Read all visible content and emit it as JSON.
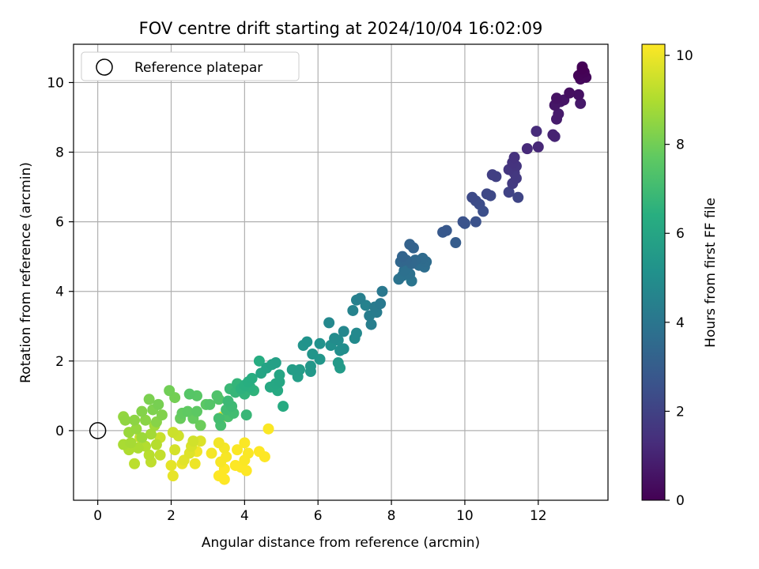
{
  "chart_data": {
    "type": "scatter",
    "title": "FOV centre drift starting at 2024/10/04 16:02:09",
    "xlabel": "Angular distance from reference (arcmin)",
    "ylabel": "Rotation from reference (arcmin)",
    "xlim": [
      -0.66,
      13.9
    ],
    "ylim": [
      -2.0,
      11.1
    ],
    "xticks": [
      0,
      2,
      4,
      6,
      8,
      10,
      12
    ],
    "yticks": [
      0,
      2,
      4,
      6,
      8,
      10
    ],
    "grid": true,
    "legend": {
      "position": "top-left",
      "entries": [
        "Reference platepar"
      ]
    },
    "reference_point": {
      "name": "Reference platepar",
      "x": 0,
      "y": 0
    },
    "colorbar": {
      "label": "Hours from first FF file",
      "colormap": "viridis",
      "range": [
        0,
        10.25
      ],
      "ticks": [
        0,
        2,
        4,
        6,
        8,
        10
      ]
    },
    "points": [
      [
        13.2,
        10.4,
        0.0
      ],
      [
        13.25,
        10.3,
        0.05
      ],
      [
        13.1,
        10.2,
        0.1
      ],
      [
        13.3,
        10.15,
        0.15
      ],
      [
        13.2,
        10.45,
        0.2
      ],
      [
        13.15,
        10.1,
        0.25
      ],
      [
        12.85,
        9.7,
        0.4
      ],
      [
        13.1,
        9.65,
        0.45
      ],
      [
        12.5,
        9.55,
        0.5
      ],
      [
        12.7,
        9.5,
        0.55
      ],
      [
        12.45,
        9.35,
        0.6
      ],
      [
        12.6,
        9.45,
        0.65
      ],
      [
        13.15,
        9.4,
        0.7
      ],
      [
        12.55,
        9.1,
        0.75
      ],
      [
        12.5,
        8.95,
        0.8
      ],
      [
        12.4,
        8.5,
        1.0
      ],
      [
        12.45,
        8.45,
        1.05
      ],
      [
        12.0,
        8.15,
        1.15
      ],
      [
        11.7,
        8.1,
        1.2
      ],
      [
        11.95,
        8.6,
        1.25
      ],
      [
        11.35,
        7.85,
        1.45
      ],
      [
        11.3,
        7.7,
        1.5
      ],
      [
        11.4,
        7.6,
        1.55
      ],
      [
        11.2,
        7.5,
        1.6
      ],
      [
        11.35,
        7.4,
        1.65
      ],
      [
        11.4,
        7.25,
        1.7
      ],
      [
        11.3,
        7.1,
        1.75
      ],
      [
        10.75,
        7.35,
        1.9
      ],
      [
        10.85,
        7.3,
        1.95
      ],
      [
        11.2,
        6.85,
        2.05
      ],
      [
        11.45,
        6.7,
        2.1
      ],
      [
        10.6,
        6.8,
        2.2
      ],
      [
        10.7,
        6.75,
        2.25
      ],
      [
        10.2,
        6.7,
        2.3
      ],
      [
        10.3,
        6.6,
        2.35
      ],
      [
        10.4,
        6.5,
        2.4
      ],
      [
        10.5,
        6.3,
        2.45
      ],
      [
        10.3,
        6.0,
        2.55
      ],
      [
        9.95,
        6.0,
        2.6
      ],
      [
        10.0,
        5.95,
        2.65
      ],
      [
        9.5,
        5.75,
        2.8
      ],
      [
        9.4,
        5.7,
        2.85
      ],
      [
        9.75,
        5.4,
        2.95
      ],
      [
        8.5,
        5.35,
        3.2
      ],
      [
        8.6,
        5.25,
        3.25
      ],
      [
        8.3,
        5.0,
        3.3
      ],
      [
        8.4,
        4.9,
        3.35
      ],
      [
        8.25,
        4.85,
        3.4
      ],
      [
        8.55,
        4.8,
        3.45
      ],
      [
        8.65,
        4.9,
        3.5
      ],
      [
        8.85,
        4.95,
        3.55
      ],
      [
        8.95,
        4.85,
        3.6
      ],
      [
        8.75,
        4.75,
        3.65
      ],
      [
        8.9,
        4.7,
        3.7
      ],
      [
        8.35,
        4.6,
        3.75
      ],
      [
        8.5,
        4.5,
        3.8
      ],
      [
        8.3,
        4.45,
        3.85
      ],
      [
        8.2,
        4.35,
        3.9
      ],
      [
        8.55,
        4.3,
        3.95
      ],
      [
        7.75,
        4.0,
        4.1
      ],
      [
        7.7,
        3.65,
        4.15
      ],
      [
        7.55,
        3.55,
        4.2
      ],
      [
        7.6,
        3.4,
        4.25
      ],
      [
        7.4,
        3.3,
        4.3
      ],
      [
        7.45,
        3.05,
        4.35
      ],
      [
        7.15,
        3.8,
        4.4
      ],
      [
        7.05,
        3.75,
        4.45
      ],
      [
        7.3,
        3.6,
        4.5
      ],
      [
        6.95,
        3.45,
        4.55
      ],
      [
        6.7,
        2.85,
        4.7
      ],
      [
        6.3,
        3.1,
        4.75
      ],
      [
        7.05,
        2.8,
        4.8
      ],
      [
        7.0,
        2.65,
        4.85
      ],
      [
        6.45,
        2.65,
        4.9
      ],
      [
        6.55,
        2.6,
        4.95
      ],
      [
        6.7,
        2.35,
        5.0
      ],
      [
        6.6,
        2.3,
        5.05
      ],
      [
        6.35,
        2.45,
        5.1
      ],
      [
        6.05,
        2.5,
        5.15
      ],
      [
        5.7,
        2.55,
        5.2
      ],
      [
        5.6,
        2.45,
        5.25
      ],
      [
        5.85,
        2.2,
        5.3
      ],
      [
        6.05,
        2.05,
        5.35
      ],
      [
        5.8,
        1.85,
        5.4
      ],
      [
        5.8,
        1.7,
        5.45
      ],
      [
        6.55,
        1.95,
        5.5
      ],
      [
        6.6,
        1.8,
        5.55
      ],
      [
        5.5,
        1.75,
        5.6
      ],
      [
        5.3,
        1.75,
        5.65
      ],
      [
        5.45,
        1.55,
        5.7
      ],
      [
        4.85,
        1.95,
        5.8
      ],
      [
        4.75,
        1.9,
        5.85
      ],
      [
        4.6,
        1.8,
        5.9
      ],
      [
        4.45,
        1.65,
        5.95
      ],
      [
        4.95,
        1.6,
        6.0
      ],
      [
        4.95,
        1.4,
        6.05
      ],
      [
        4.85,
        1.35,
        6.1
      ],
      [
        4.7,
        1.25,
        6.15
      ],
      [
        4.9,
        1.15,
        6.2
      ],
      [
        5.05,
        0.7,
        6.25
      ],
      [
        4.4,
        2.0,
        6.3
      ],
      [
        4.2,
        1.5,
        6.35
      ],
      [
        4.1,
        1.4,
        6.4
      ],
      [
        4.0,
        1.3,
        6.45
      ],
      [
        4.15,
        1.25,
        6.5
      ],
      [
        3.9,
        1.2,
        6.55
      ],
      [
        4.25,
        1.15,
        6.6
      ],
      [
        4.0,
        1.05,
        6.65
      ],
      [
        3.8,
        1.35,
        6.7
      ],
      [
        3.75,
        1.1,
        6.75
      ],
      [
        4.05,
        0.45,
        6.8
      ],
      [
        3.6,
        1.2,
        6.85
      ],
      [
        3.55,
        0.85,
        6.9
      ],
      [
        3.65,
        0.7,
        6.95
      ],
      [
        3.5,
        0.6,
        7.0
      ],
      [
        3.7,
        0.5,
        7.05
      ],
      [
        3.3,
        0.35,
        7.1
      ],
      [
        3.35,
        0.15,
        7.15
      ],
      [
        3.55,
        0.4,
        7.2
      ],
      [
        3.25,
        1.0,
        7.35
      ],
      [
        3.3,
        0.9,
        7.4
      ],
      [
        3.05,
        0.75,
        7.45
      ],
      [
        2.5,
        1.05,
        7.5
      ],
      [
        2.7,
        1.0,
        7.55
      ],
      [
        2.95,
        0.75,
        7.6
      ],
      [
        2.7,
        0.55,
        7.65
      ],
      [
        2.45,
        0.55,
        7.7
      ],
      [
        2.3,
        0.5,
        7.75
      ],
      [
        2.6,
        0.35,
        7.8
      ],
      [
        2.25,
        0.35,
        7.85
      ],
      [
        2.8,
        0.15,
        7.9
      ],
      [
        1.95,
        1.15,
        8.0
      ],
      [
        2.1,
        0.95,
        8.05
      ],
      [
        1.65,
        0.75,
        8.1
      ],
      [
        1.4,
        0.9,
        8.15
      ],
      [
        1.5,
        0.6,
        8.2
      ],
      [
        1.75,
        0.45,
        8.25
      ],
      [
        1.2,
        0.55,
        8.3
      ],
      [
        1.6,
        0.25,
        8.35
      ],
      [
        1.3,
        0.3,
        8.4
      ],
      [
        1.0,
        0.3,
        8.45
      ],
      [
        0.75,
        0.3,
        8.5
      ],
      [
        0.7,
        0.4,
        8.55
      ],
      [
        1.05,
        0.05,
        8.6
      ],
      [
        0.85,
        -0.05,
        8.65
      ],
      [
        1.2,
        -0.2,
        8.7
      ],
      [
        1.55,
        0.15,
        8.75
      ],
      [
        1.45,
        -0.1,
        8.8
      ],
      [
        0.9,
        -0.35,
        8.85
      ],
      [
        0.7,
        -0.4,
        8.9
      ],
      [
        1.1,
        -0.5,
        8.95
      ],
      [
        0.85,
        -0.55,
        9.0
      ],
      [
        1.3,
        -0.45,
        9.05
      ],
      [
        1.6,
        -0.4,
        9.1
      ],
      [
        1.4,
        -0.7,
        9.15
      ],
      [
        1.0,
        -0.95,
        9.2
      ],
      [
        1.45,
        -0.9,
        9.25
      ],
      [
        1.7,
        -0.7,
        9.3
      ],
      [
        1.15,
        -0.2,
        9.35
      ],
      [
        1.7,
        -0.2,
        9.4
      ],
      [
        2.05,
        -0.05,
        9.45
      ],
      [
        2.2,
        -0.15,
        9.5
      ],
      [
        2.6,
        -0.3,
        9.55
      ],
      [
        2.1,
        -0.55,
        9.6
      ],
      [
        2.55,
        -0.45,
        9.65
      ],
      [
        2.8,
        -0.3,
        9.7
      ],
      [
        2.5,
        -0.65,
        9.75
      ],
      [
        2.35,
        -0.85,
        9.8
      ],
      [
        2.0,
        -1.0,
        9.85
      ],
      [
        2.05,
        -1.3,
        9.9
      ],
      [
        2.3,
        -0.95,
        9.95
      ],
      [
        2.65,
        -0.95,
        10.0
      ],
      [
        2.7,
        -0.6,
        10.05
      ],
      [
        3.3,
        -0.35,
        10.05
      ],
      [
        3.45,
        -0.5,
        10.1
      ],
      [
        3.1,
        -0.65,
        10.1
      ],
      [
        3.5,
        -0.75,
        10.15
      ],
      [
        3.35,
        -0.9,
        10.15
      ],
      [
        3.8,
        -0.55,
        10.2
      ],
      [
        4.1,
        -0.65,
        10.2
      ],
      [
        4.0,
        -0.85,
        10.2
      ],
      [
        3.75,
        -1.0,
        10.25
      ],
      [
        3.9,
        -1.05,
        10.25
      ],
      [
        3.45,
        -1.1,
        10.25
      ],
      [
        3.3,
        -1.3,
        10.25
      ],
      [
        3.45,
        -1.4,
        10.25
      ],
      [
        4.05,
        -1.15,
        10.25
      ],
      [
        4.55,
        -0.75,
        10.25
      ],
      [
        4.4,
        -0.6,
        10.25
      ],
      [
        4.0,
        -0.35,
        10.2
      ],
      [
        4.65,
        0.05,
        10.2
      ],
      [
        3.4,
        0.4,
        10.2
      ]
    ]
  }
}
